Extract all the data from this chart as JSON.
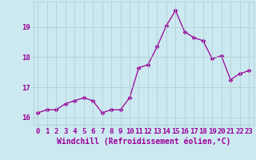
{
  "x": [
    0,
    1,
    2,
    3,
    4,
    5,
    6,
    7,
    8,
    9,
    10,
    11,
    12,
    13,
    14,
    15,
    16,
    17,
    18,
    19,
    20,
    21,
    22,
    23
  ],
  "y": [
    16.15,
    16.25,
    16.25,
    16.45,
    16.55,
    16.65,
    16.55,
    16.15,
    16.25,
    16.25,
    16.65,
    17.65,
    17.75,
    18.35,
    19.05,
    19.55,
    18.85,
    18.65,
    18.55,
    17.95,
    18.05,
    17.25,
    17.45,
    17.55
  ],
  "line_color": "#990099",
  "marker": "D",
  "marker_size": 2.5,
  "bg_color": "#cce8f0",
  "grid_color": "#aacccc",
  "xlabel": "Windchill (Refroidissement éolien,°C)",
  "ylim": [
    15.75,
    19.85
  ],
  "xlim": [
    -0.5,
    23.5
  ],
  "yticks": [
    16,
    17,
    18,
    19
  ],
  "xticks": [
    0,
    1,
    2,
    3,
    4,
    5,
    6,
    7,
    8,
    9,
    10,
    11,
    12,
    13,
    14,
    15,
    16,
    17,
    18,
    19,
    20,
    21,
    22,
    23
  ],
  "xlabel_fontsize": 7,
  "tick_fontsize": 6.5,
  "label_color": "#990099"
}
